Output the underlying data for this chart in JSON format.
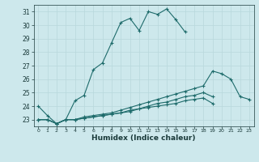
{
  "xlabel": "Humidex (Indice chaleur)",
  "ylabel": "",
  "bg_color": "#cde8ec",
  "grid_color": "#b8d8dc",
  "line_color": "#1e6b6b",
  "x": [
    0,
    1,
    2,
    3,
    4,
    5,
    6,
    7,
    8,
    9,
    10,
    11,
    12,
    13,
    14,
    15,
    16,
    17,
    18,
    19,
    20,
    21,
    22,
    23
  ],
  "series1": [
    24.0,
    23.3,
    22.7,
    23.0,
    24.4,
    24.8,
    26.7,
    27.2,
    28.7,
    30.2,
    30.5,
    29.6,
    31.0,
    30.8,
    31.2,
    30.4,
    29.5,
    null,
    null,
    null,
    null,
    null,
    null,
    null
  ],
  "series2": [
    23.0,
    23.0,
    22.7,
    23.0,
    23.0,
    23.2,
    23.3,
    23.4,
    23.5,
    23.7,
    23.9,
    24.1,
    24.3,
    24.5,
    24.7,
    24.9,
    25.1,
    25.3,
    25.5,
    26.6,
    26.4,
    26.0,
    24.7,
    24.5
  ],
  "series3": [
    23.0,
    23.0,
    22.7,
    23.0,
    23.0,
    23.1,
    23.2,
    23.3,
    23.4,
    23.5,
    23.7,
    23.8,
    24.0,
    24.2,
    24.3,
    24.5,
    24.7,
    24.8,
    25.0,
    24.7,
    null,
    null,
    null,
    null
  ],
  "series4": [
    23.0,
    23.0,
    22.7,
    23.0,
    23.0,
    23.1,
    23.2,
    23.3,
    23.4,
    23.5,
    23.6,
    23.8,
    23.9,
    24.0,
    24.1,
    24.2,
    24.4,
    24.5,
    24.6,
    24.2,
    null,
    null,
    null,
    null
  ],
  "xlim": [
    -0.5,
    23.5
  ],
  "ylim": [
    22.5,
    31.5
  ],
  "yticks": [
    23,
    24,
    25,
    26,
    27,
    28,
    29,
    30,
    31
  ],
  "xticks": [
    0,
    1,
    2,
    3,
    4,
    5,
    6,
    7,
    8,
    9,
    10,
    11,
    12,
    13,
    14,
    15,
    16,
    17,
    18,
    19,
    20,
    21,
    22,
    23
  ]
}
